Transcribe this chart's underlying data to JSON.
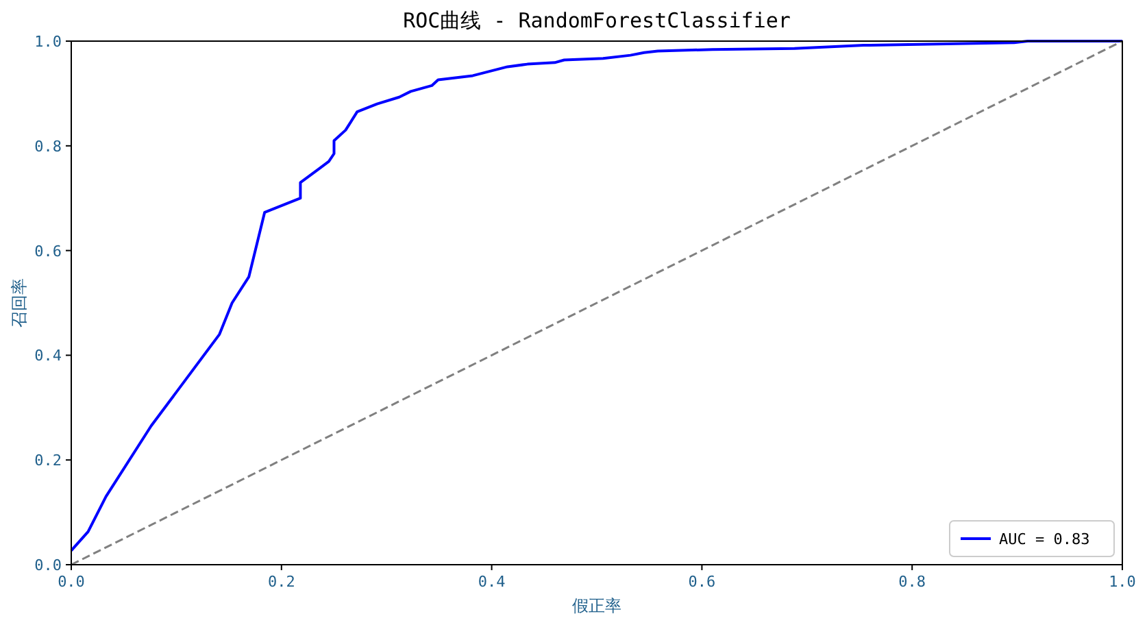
{
  "chart_data": {
    "type": "line",
    "title": "ROC曲线 - RandomForestClassifier",
    "xlabel": "假正率",
    "ylabel": "召回率",
    "xlim": [
      0,
      1
    ],
    "ylim": [
      0,
      1
    ],
    "xticks": [
      {
        "value": 0,
        "label": "0.0"
      },
      {
        "value": 0.2,
        "label": "0.2"
      },
      {
        "value": 0.4,
        "label": "0.4"
      },
      {
        "value": 0.6,
        "label": "0.6"
      },
      {
        "value": 0.8,
        "label": "0.8"
      },
      {
        "value": 1,
        "label": "1.0"
      }
    ],
    "yticks": [
      {
        "value": 0,
        "label": "0.0"
      },
      {
        "value": 0.2,
        "label": "0.2"
      },
      {
        "value": 0.4,
        "label": "0.4"
      },
      {
        "value": 0.6,
        "label": "0.6"
      },
      {
        "value": 0.8,
        "label": "0.8"
      },
      {
        "value": 1,
        "label": "1.0"
      }
    ],
    "legend": "bottom right",
    "grid": false,
    "series": [
      {
        "name": "AUC = 0.83",
        "color": "#0000ff",
        "line_style": "solid",
        "x": [
          0,
          0.016,
          0.033,
          0.076,
          0.141,
          0.153,
          0.169,
          0.184,
          0.218,
          0.218,
          0.235,
          0.245,
          0.25,
          0.25,
          0.261,
          0.272,
          0.291,
          0.312,
          0.323,
          0.343,
          0.349,
          0.382,
          0.415,
          0.434,
          0.46,
          0.469,
          0.506,
          0.532,
          0.545,
          0.558,
          0.61,
          0.688,
          0.754,
          0.897,
          0.91,
          1
        ],
        "values": [
          0.027,
          0.063,
          0.13,
          0.265,
          0.44,
          0.5,
          0.55,
          0.673,
          0.7,
          0.73,
          0.755,
          0.77,
          0.785,
          0.81,
          0.83,
          0.865,
          0.88,
          0.893,
          0.904,
          0.915,
          0.926,
          0.934,
          0.951,
          0.956,
          0.959,
          0.964,
          0.967,
          0.973,
          0.978,
          0.981,
          0.984,
          0.986,
          0.992,
          0.997,
          1,
          1
        ]
      },
      {
        "color": "#808080",
        "line_style": "dashed",
        "x": [
          0,
          1
        ],
        "values": [
          0,
          1
        ]
      }
    ]
  }
}
